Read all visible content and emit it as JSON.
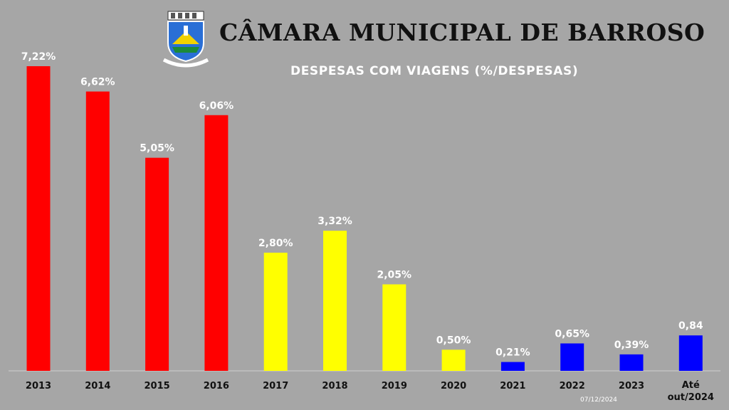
{
  "header": {
    "title": "CÂMARA MUNICIPAL DE BARROSO",
    "subtitle": "DESPESAS COM VIAGENS (%/DESPESAS)"
  },
  "footer": {
    "date": "07/12/2024"
  },
  "colors": {
    "background": "#a6a6a6",
    "red": "#ff0000",
    "yellow": "#ffff00",
    "blue": "#0000ff"
  },
  "chart_data": {
    "type": "bar",
    "grid": false,
    "ylim": [
      0,
      7.5
    ],
    "categories": [
      "2013",
      "2014",
      "2015",
      "2016",
      "2017",
      "2018",
      "2019",
      "2020",
      "2021",
      "2022",
      "2023",
      "Até out/2024"
    ],
    "values": [
      7.22,
      6.62,
      5.05,
      6.06,
      2.8,
      3.32,
      2.05,
      0.5,
      0.21,
      0.65,
      0.39,
      0.84
    ],
    "data_labels": [
      "7,22%",
      "6,62%",
      "5,05%",
      "6,06%",
      "2,80%",
      "3,32%",
      "2,05%",
      "0,50%",
      "0,21%",
      "0,65%",
      "0,39%",
      "0,84"
    ],
    "bar_colors": [
      "#ff0000",
      "#ff0000",
      "#ff0000",
      "#ff0000",
      "#ffff00",
      "#ffff00",
      "#ffff00",
      "#ffff00",
      "#0000ff",
      "#0000ff",
      "#0000ff",
      "#0000ff"
    ]
  }
}
